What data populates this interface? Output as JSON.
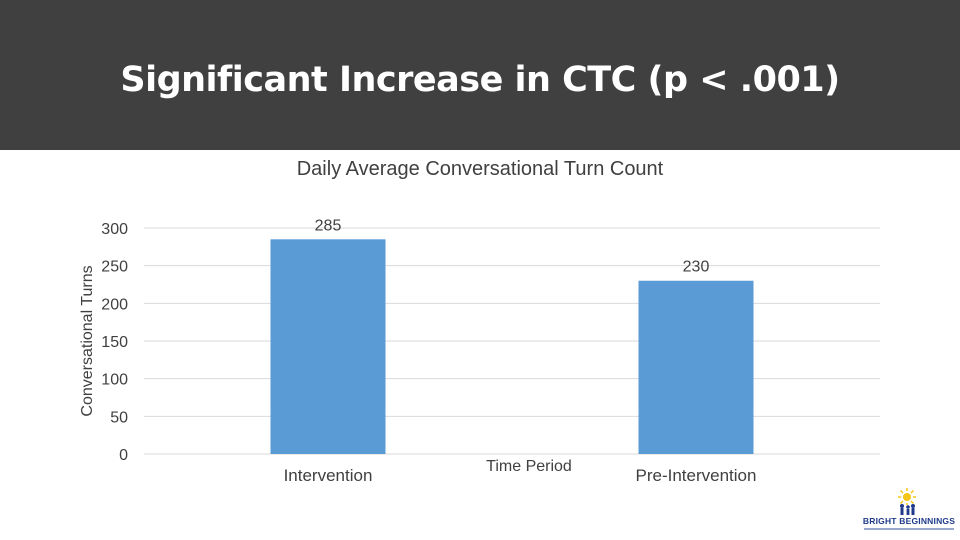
{
  "header": {
    "title": "Significant Increase in CTC (p < .001)"
  },
  "chart_data": {
    "type": "bar",
    "title": "Daily Average Conversational Turn Count",
    "xlabel": "Time Period",
    "ylabel": "Conversational Turns",
    "categories": [
      "Intervention",
      "Pre-Intervention"
    ],
    "values": [
      285,
      230
    ],
    "data_labels": [
      "285",
      "230"
    ],
    "ylim": [
      0,
      300
    ],
    "yticks": [
      0,
      50,
      100,
      150,
      200,
      250,
      300
    ],
    "grid": true,
    "bar_color": "#5b9bd5"
  },
  "logo": {
    "name": "bright-beginnings-logo",
    "text": "BRIGHT BEGINNINGS"
  }
}
